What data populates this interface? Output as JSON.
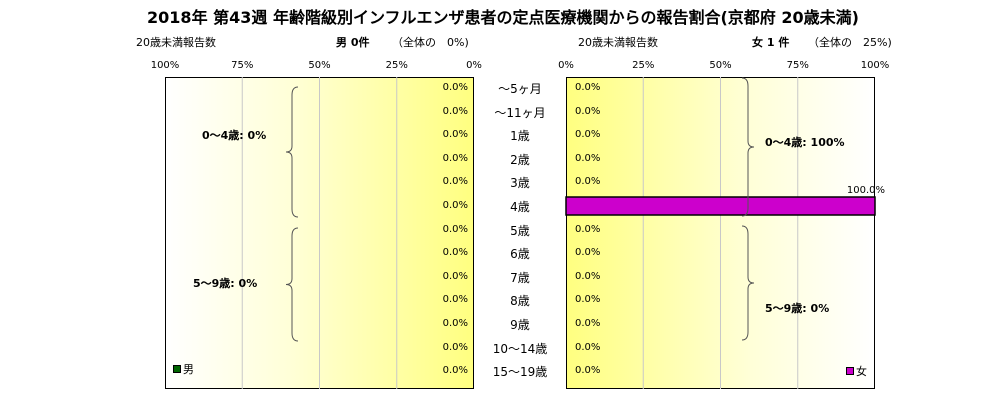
{
  "title": "2018年 第43週 年齢階級別インフルエンザ患者の定点医療機関からの報告割合(京都府 20歳未満)",
  "male_panel": {
    "count_label": "20歳未満報告数",
    "summary": "男 0件",
    "share": "（全体の　0%)",
    "legend": "男",
    "groups": [
      "0～4歳: 0%",
      "5～9歳: 0%"
    ]
  },
  "female_panel": {
    "count_label": "20歳未満報告数",
    "summary": "女 1 件",
    "share": "（全体の　25%)",
    "legend": "女",
    "groups": [
      "0～4歳: 100%",
      "5～9歳: 0%"
    ]
  },
  "colors": {
    "male": "#006400",
    "female": "#cc00cc"
  },
  "chart_data": {
    "type": "bar",
    "categories": [
      "～5ヶ月",
      "～11ヶ月",
      "1歳",
      "2歳",
      "3歳",
      "4歳",
      "5歳",
      "6歳",
      "7歳",
      "8歳",
      "9歳",
      "10～14歳",
      "15～19歳"
    ],
    "series": [
      {
        "name": "男",
        "values": [
          0,
          0,
          0,
          0,
          0,
          0,
          0,
          0,
          0,
          0,
          0,
          0,
          0
        ],
        "labels": [
          "0.0%",
          "0.0%",
          "0.0%",
          "0.0%",
          "0.0%",
          "0.0%",
          "0.0%",
          "0.0%",
          "0.0%",
          "0.0%",
          "0.0%",
          "0.0%",
          "0.0%"
        ]
      },
      {
        "name": "女",
        "values": [
          0,
          0,
          0,
          0,
          0,
          100,
          0,
          0,
          0,
          0,
          0,
          0,
          0
        ],
        "labels": [
          "0.0%",
          "0.0%",
          "0.0%",
          "0.0%",
          "0.0%",
          "100.0%",
          "0.0%",
          "0.0%",
          "0.0%",
          "0.0%",
          "0.0%",
          "0.0%",
          "0.0%"
        ]
      }
    ],
    "male_ticks": [
      "100%",
      "75%",
      "50%",
      "25%",
      "0%"
    ],
    "female_ticks": [
      "0%",
      "25%",
      "50%",
      "75%",
      "100%"
    ],
    "xlim": [
      0,
      100
    ],
    "grid": true
  }
}
